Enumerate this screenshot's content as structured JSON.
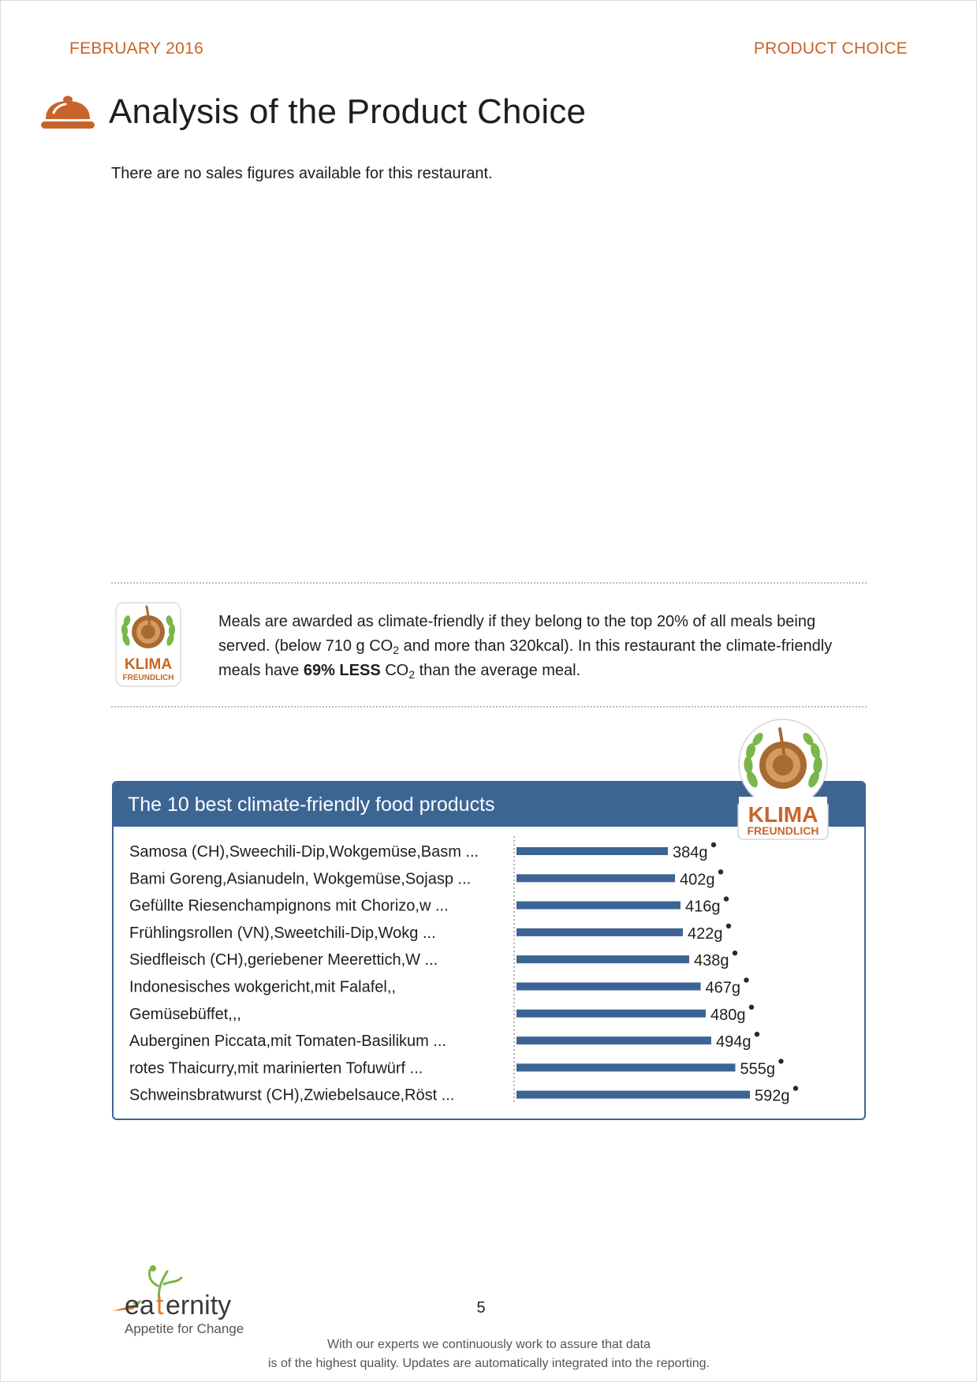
{
  "header": {
    "date": "FEBRUARY 2016",
    "section": "PRODUCT CHOICE"
  },
  "title": "Analysis of the Product Choice",
  "intro": "There are no sales figures available for this restaurant.",
  "info": {
    "line1": "Meals are awarded as climate-friendly if they belong to the top 20% of all meals being",
    "line2_pre": "served. (below 710 g CO",
    "line2_sub": "2",
    "line2_post": " and more than 320kcal). In this restaurant the climate-friendly",
    "line3_pre": "meals have ",
    "line3_bold": "69% LESS",
    "line3_mid": " CO",
    "line3_sub": "2",
    "line3_post": " than the average meal."
  },
  "badge": {
    "word1": "KLIMA",
    "word2": "FREUNDLICH"
  },
  "chart_data": {
    "type": "bar",
    "orientation": "horizontal",
    "title": "The 10 best climate-friendly food products",
    "categories": [
      "Samosa (CH),Sweechili-Dip,Wokgemüse,Basm ...",
      "Bami Goreng,Asianudeln, Wokgemüse,Sojasp ...",
      "Gefüllte Riesenchampignons mit Chorizo,w ...",
      "Frühlingsrollen (VN),Sweetchili-Dip,Wokg ...",
      "Siedfleisch (CH),geriebener Meerettich,W ...",
      "Indonesisches wokgericht,mit Falafel,,",
      "Gemüsebüffet,,,",
      "Auberginen Piccata,mit Tomaten-Basilikum ...",
      "rotes Thaicurry,mit marinierten Tofuwürf ...",
      "Schweinsbratwurst (CH),Zwiebelsauce,Röst ..."
    ],
    "values": [
      384,
      402,
      416,
      422,
      438,
      467,
      480,
      494,
      555,
      592
    ],
    "value_labels": [
      "384g",
      "402g",
      "416g",
      "422g",
      "438g",
      "467g",
      "480g",
      "494g",
      "555g",
      "592g"
    ],
    "unit": "g",
    "bar_color": "#3d6594",
    "xlim": [
      0,
      592
    ]
  },
  "logo": {
    "name": "eaternity",
    "tagline": "Appetite for Change"
  },
  "page_number": "5",
  "footer": {
    "line1": "With our experts we continuously work to assure that data",
    "line2": "is of the highest quality. Updates are automatically integrated into the reporting."
  },
  "colors": {
    "accent": "#c8642a",
    "chart_blue": "#3d6594",
    "badge_green": "#7ab648",
    "badge_brown": "#a86a32"
  }
}
